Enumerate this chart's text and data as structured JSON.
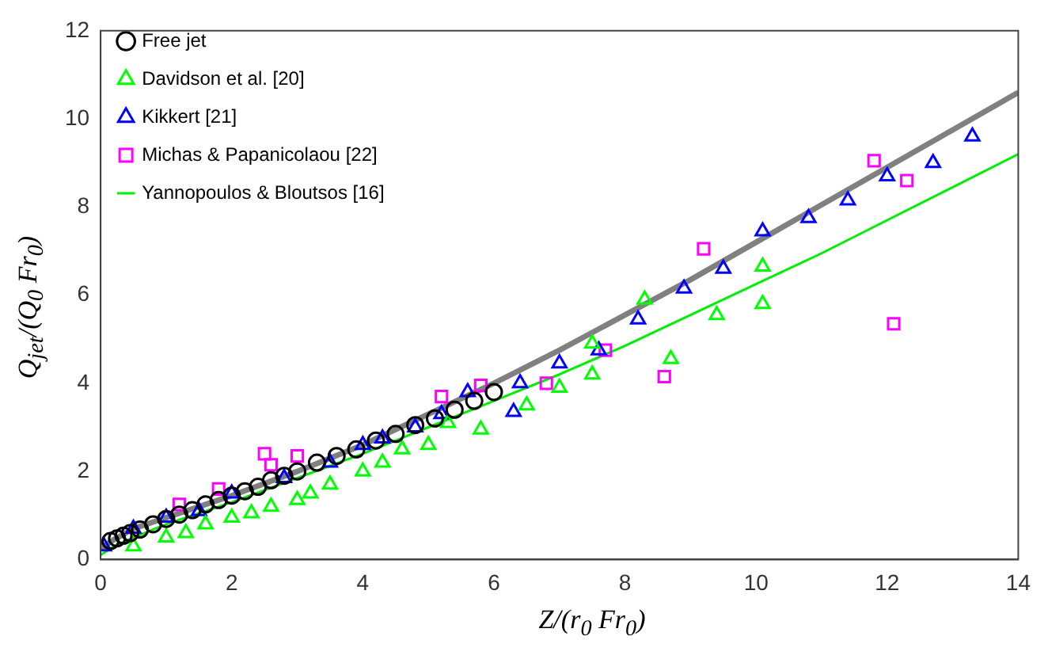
{
  "chart_data": {
    "type": "scatter",
    "xlabel": "Z/(r$_{0}$ Fr$_{0}$)",
    "ylabel": "Q$_{jet}$/(Q$_{0}$ Fr$_{0}$)",
    "xlim": [
      0,
      14
    ],
    "ylim": [
      0,
      12
    ],
    "xticks": [
      0,
      2,
      4,
      6,
      8,
      10,
      12,
      14
    ],
    "yticks": [
      0,
      2,
      4,
      6,
      8,
      10,
      12
    ],
    "grid": false,
    "legend": "top left",
    "series": [
      {
        "name": "Free jet",
        "color": "#000000",
        "marker": "circle",
        "x": [
          0.15,
          0.25,
          0.35,
          0.45,
          0.6,
          0.8,
          1.0,
          1.2,
          1.4,
          1.6,
          1.8,
          2.0,
          2.2,
          2.4,
          2.6,
          2.8,
          3.0,
          3.3,
          3.6,
          3.9,
          4.2,
          4.5,
          4.8,
          5.1,
          5.4,
          5.7,
          6.0
        ],
        "values": [
          0.42,
          0.48,
          0.54,
          0.6,
          0.68,
          0.8,
          0.92,
          1.02,
          1.12,
          1.25,
          1.35,
          1.45,
          1.55,
          1.65,
          1.8,
          1.9,
          2.0,
          2.2,
          2.35,
          2.5,
          2.7,
          2.85,
          3.05,
          3.2,
          3.4,
          3.6,
          3.8
        ]
      },
      {
        "name": "Davidson et al. [20]",
        "color": "#00ff00",
        "marker": "triangle",
        "x": [
          0.5,
          1.0,
          1.3,
          1.6,
          2.0,
          2.3,
          2.6,
          3.0,
          3.2,
          3.5,
          4.0,
          4.3,
          4.6,
          5.0,
          5.3,
          5.8,
          6.5,
          7.0,
          7.5,
          7.5,
          8.3,
          8.7,
          9.4,
          10.1,
          10.1
        ],
        "values": [
          0.3,
          0.5,
          0.6,
          0.8,
          0.95,
          1.05,
          1.2,
          1.35,
          1.5,
          1.7,
          2.0,
          2.2,
          2.5,
          2.6,
          3.1,
          2.95,
          3.5,
          3.9,
          4.2,
          4.9,
          5.9,
          4.55,
          5.55,
          5.8,
          6.65
        ]
      },
      {
        "name": "Kikkert [21]",
        "color": "#0000ff",
        "marker": "triangle",
        "x": [
          0.05,
          0.5,
          1.0,
          1.5,
          2.0,
          2.8,
          3.5,
          4.0,
          4.3,
          4.8,
          5.2,
          5.6,
          6.3,
          6.4,
          7.0,
          7.6,
          8.2,
          8.9,
          9.5,
          10.1,
          10.8,
          11.4,
          12.0,
          12.7,
          13.3
        ],
        "values": [
          0.3,
          0.7,
          0.95,
          1.1,
          1.5,
          1.85,
          2.2,
          2.6,
          2.75,
          3.0,
          3.3,
          3.8,
          3.35,
          4.0,
          4.45,
          4.75,
          5.45,
          6.15,
          6.6,
          7.45,
          7.75,
          8.15,
          8.7,
          9.0,
          9.6
        ]
      },
      {
        "name": "Michas & Papanicolaou [22]",
        "color": "#ff00ff",
        "marker": "square",
        "x": [
          1.2,
          1.8,
          2.5,
          2.6,
          3.0,
          5.2,
          5.8,
          6.8,
          7.7,
          8.6,
          9.2,
          11.8,
          12.1,
          12.3
        ],
        "values": [
          1.25,
          1.6,
          2.4,
          2.15,
          2.35,
          3.7,
          3.95,
          4.0,
          4.75,
          4.15,
          7.05,
          9.05,
          5.35,
          8.6
        ]
      },
      {
        "name": "Yannopoulos & Bloutsos [16]",
        "type": "line",
        "color": "#00ee00",
        "marker": "none",
        "x": [
          0,
          0.2,
          0.5,
          1,
          2,
          3,
          4,
          5,
          6,
          7,
          8,
          9,
          10,
          11,
          12,
          13,
          14
        ],
        "values": [
          0.1,
          0.3,
          0.5,
          0.8,
          1.3,
          1.85,
          2.4,
          3.0,
          3.6,
          4.2,
          4.85,
          5.55,
          6.25,
          6.95,
          7.7,
          8.45,
          9.2
        ]
      },
      {
        "type": "line",
        "color": "#808080",
        "marker": "none",
        "x": [
          0,
          0.2,
          0.5,
          1,
          2,
          3,
          4,
          5,
          6,
          7,
          8,
          9,
          10,
          11,
          12,
          13,
          14
        ],
        "values": [
          0.25,
          0.45,
          0.7,
          0.95,
          1.45,
          2.0,
          2.6,
          3.3,
          4.0,
          4.75,
          5.55,
          6.35,
          7.2,
          8.05,
          8.9,
          9.75,
          10.6
        ]
      }
    ]
  }
}
